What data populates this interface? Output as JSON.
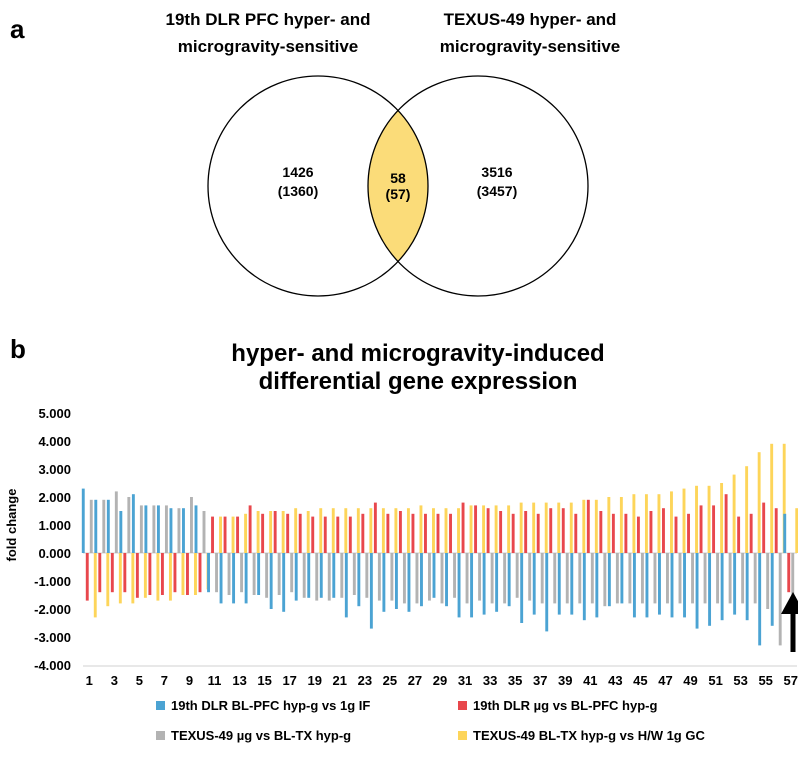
{
  "panel_a": {
    "label": "a",
    "left_title": [
      "19th DLR PFC hyper- and",
      "microgravity-sensitive"
    ],
    "right_title": [
      "TEXUS-49 hyper- and",
      "microgravity-sensitive"
    ],
    "left_value": "1426",
    "left_sub": "(1360)",
    "overlap_value": "58",
    "overlap_sub": "(57)",
    "right_value": "3516",
    "right_sub": "(3457)",
    "colors": {
      "overlap_fill": "#fbdc79",
      "circle_stroke": "#000000"
    }
  },
  "panel_b": {
    "label": "b",
    "arrow_target": 57
  },
  "chart_data": {
    "type": "bar",
    "title": [
      "hyper- and microgravity-induced",
      "differential gene expression"
    ],
    "ylabel": "fold change",
    "xlabel": "",
    "ylim": [
      -4,
      5
    ],
    "yticks": [
      "-4.000",
      "-3.000",
      "-2.000",
      "-1.000",
      "0.000",
      "1.000",
      "2.000",
      "3.000",
      "4.000",
      "5.000"
    ],
    "xtick_labels": [
      "1",
      "3",
      "5",
      "7",
      "9",
      "11",
      "13",
      "15",
      "17",
      "19",
      "21",
      "23",
      "25",
      "27",
      "29",
      "31",
      "33",
      "35",
      "37",
      "39",
      "41",
      "43",
      "45",
      "47",
      "49",
      "51",
      "53",
      "55",
      "57"
    ],
    "x_count": 57,
    "grid": false,
    "legend_position": "bottom",
    "series": [
      {
        "name": "19th DLR BL-PFC hyp-g vs 1g IF",
        "color": "#4ba3d3",
        "values": [
          2.3,
          1.9,
          1.9,
          1.5,
          2.1,
          1.7,
          1.7,
          1.6,
          1.6,
          1.7,
          -1.4,
          -1.8,
          -1.8,
          -1.8,
          -1.5,
          -2.0,
          -2.1,
          -1.7,
          -1.6,
          -1.6,
          -1.6,
          -2.3,
          -1.9,
          -2.7,
          -2.1,
          -2.0,
          -2.1,
          -1.9,
          -1.6,
          -1.9,
          -2.3,
          -2.3,
          -2.2,
          -2.1,
          -1.9,
          -2.5,
          -2.2,
          -2.8,
          -2.2,
          -2.2,
          -2.4,
          -2.3,
          -1.9,
          -1.8,
          -2.3,
          -2.3,
          -2.2,
          -2.3,
          -2.3,
          -2.7,
          -2.6,
          -2.4,
          -2.2,
          -2.4,
          -3.3,
          -2.6,
          1.4
        ]
      },
      {
        "name": "19th DLR µg vs BL-PFC hyp-g",
        "color": "#e8474c",
        "values": [
          -1.7,
          -1.4,
          -1.4,
          -1.4,
          -1.6,
          -1.5,
          -1.5,
          -1.4,
          -1.5,
          -1.4,
          1.3,
          1.3,
          1.3,
          1.7,
          1.4,
          1.5,
          1.4,
          1.4,
          1.3,
          1.3,
          1.3,
          1.3,
          1.4,
          1.8,
          1.4,
          1.5,
          1.4,
          1.4,
          1.4,
          1.4,
          1.8,
          1.7,
          1.6,
          1.5,
          1.4,
          1.5,
          1.4,
          1.6,
          1.6,
          1.4,
          1.9,
          1.5,
          1.4,
          1.4,
          1.3,
          1.5,
          1.6,
          1.3,
          1.4,
          1.7,
          1.7,
          2.1,
          1.3,
          1.4,
          1.8,
          1.6,
          -1.4
        ]
      },
      {
        "name": "TEXUS-49 µg vs BL-TX hyp-g",
        "color": "#b3b3b3",
        "values": [
          1.9,
          1.9,
          2.2,
          2.0,
          1.7,
          1.7,
          1.7,
          1.6,
          2.0,
          1.5,
          -1.4,
          -1.5,
          -1.4,
          -1.5,
          -1.6,
          -1.5,
          -1.4,
          -1.6,
          -1.7,
          -1.7,
          -1.6,
          -1.5,
          -1.6,
          -1.7,
          -1.7,
          -1.8,
          -1.8,
          -1.7,
          -1.8,
          -1.6,
          -1.8,
          -1.7,
          -1.8,
          -1.8,
          -1.6,
          -1.7,
          -1.8,
          -1.8,
          -1.8,
          -1.8,
          -1.8,
          -1.9,
          -1.8,
          -1.8,
          -1.8,
          -1.8,
          -1.8,
          -1.8,
          -1.8,
          -1.8,
          -1.8,
          -1.8,
          -1.8,
          -1.8,
          -2.0,
          -3.3,
          -1.8
        ]
      },
      {
        "name": "TEXUS-49 BL-TX hyp-g vs H/W 1g GC",
        "color": "#fdd55a",
        "values": [
          -2.3,
          -1.9,
          -1.8,
          -1.8,
          -1.6,
          -1.7,
          -1.7,
          -1.5,
          -1.5,
          -1.3,
          1.3,
          1.3,
          1.4,
          1.5,
          1.5,
          1.5,
          1.6,
          1.5,
          1.6,
          1.6,
          1.6,
          1.6,
          1.6,
          1.6,
          1.6,
          1.6,
          1.7,
          1.6,
          1.6,
          1.6,
          1.7,
          1.7,
          1.7,
          1.7,
          1.8,
          1.8,
          1.8,
          1.8,
          1.8,
          1.9,
          1.9,
          2.0,
          2.0,
          2.1,
          2.1,
          2.1,
          2.2,
          2.3,
          2.4,
          2.4,
          2.5,
          2.8,
          3.1,
          3.6,
          3.9,
          3.9,
          1.6
        ]
      }
    ]
  }
}
